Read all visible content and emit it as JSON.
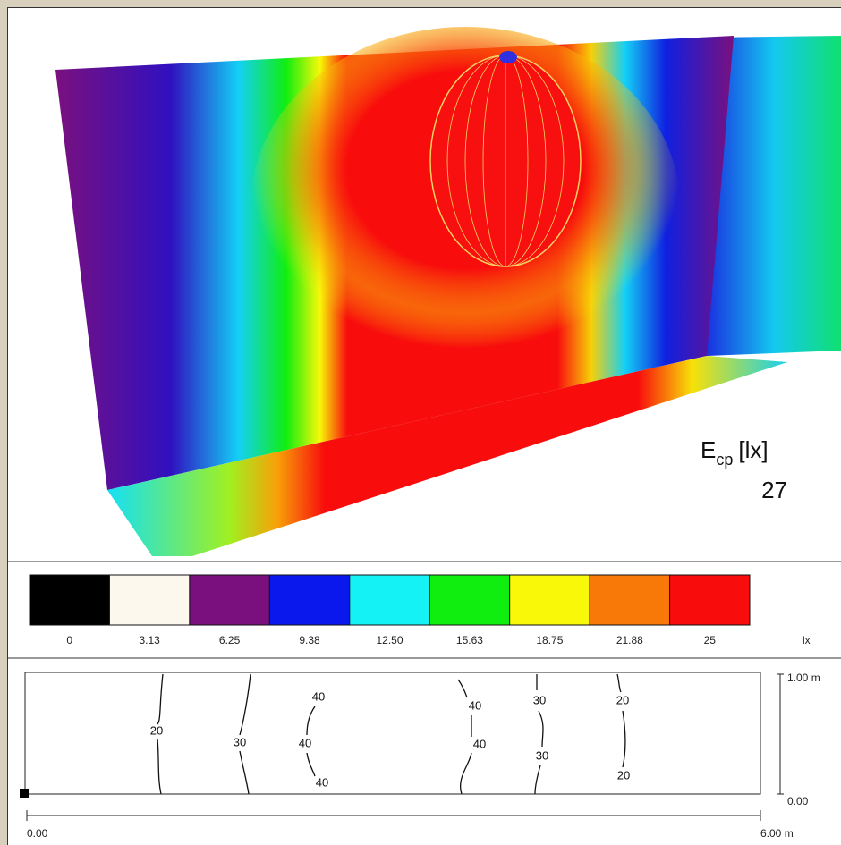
{
  "render": {
    "quantity": "E",
    "subscript": "cp",
    "unit": "[lx]",
    "value": "27"
  },
  "legend": {
    "items": [
      {
        "color": "#000000",
        "label": "0"
      },
      {
        "color": "#fdf8ee",
        "label": "3.13"
      },
      {
        "color": "#7a107e",
        "label": "6.25"
      },
      {
        "color": "#0a18ee",
        "label": "9.38"
      },
      {
        "color": "#14f2f6",
        "label": "12.50"
      },
      {
        "color": "#10ee10",
        "label": "15.63"
      },
      {
        "color": "#f8f808",
        "label": "18.75"
      },
      {
        "color": "#f87808",
        "label": "21.88"
      },
      {
        "color": "#f80c0c",
        "label": "25"
      }
    ],
    "unit": "lx"
  },
  "isolines": {
    "labels": [
      "20",
      "30",
      "40",
      "40",
      "40",
      "40",
      "40",
      "30",
      "30",
      "20",
      "20"
    ],
    "y_top": "1.00 m",
    "y_bottom": "0.00",
    "x_start": "0.00",
    "x_end": "6.00 m"
  }
}
